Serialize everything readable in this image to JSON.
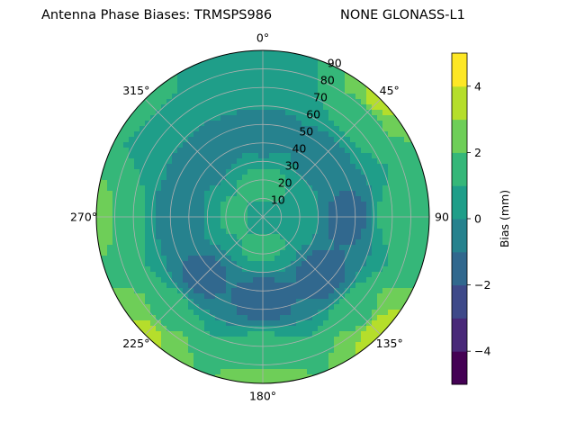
{
  "title": {
    "left": "Antenna Phase Biases: TRMSPS986",
    "right": "NONE GLONASS-L1"
  },
  "chart_data": {
    "type": "heatmap",
    "projection": "polar",
    "angular_axis": {
      "zero_location": "top",
      "direction": "clockwise",
      "ticks": [
        0,
        45,
        90,
        135,
        180,
        225,
        270,
        315
      ],
      "tick_labels": [
        "0°",
        "45°",
        "90",
        "135°",
        "180°",
        "225°",
        "270°",
        "315°"
      ]
    },
    "radial_axis": {
      "range": [
        0,
        90
      ],
      "ticks": [
        10,
        20,
        30,
        40,
        50,
        60,
        70,
        80,
        90
      ],
      "tick_labels": [
        "10",
        "20",
        "30",
        "40",
        "50",
        "60",
        "70",
        "80",
        "90"
      ]
    },
    "grid": true,
    "colorbar": {
      "label": "Bias (mm)",
      "colormap": "viridis",
      "range": [
        -5,
        5
      ],
      "levels": [
        -5,
        -4,
        -3,
        -2,
        -1,
        0,
        1,
        2,
        3,
        4,
        5
      ],
      "ticks": [
        -4,
        -2,
        0,
        2,
        4
      ],
      "tick_labels": [
        "−4",
        "−2",
        "0",
        "2",
        "4"
      ],
      "colors": [
        "#440154",
        "#482878",
        "#3e4989",
        "#31688e",
        "#26828e",
        "#1f9e89",
        "#35b779",
        "#6ece58",
        "#b5de2b",
        "#fde725"
      ]
    },
    "field": {
      "description_units": "bias in mm as a function of azimuth (deg) and zenith distance (deg)",
      "samples": [
        {
          "azimuth": 0,
          "zenith": 0,
          "bias": 0.6
        },
        {
          "azimuth": 0,
          "zenith": 15,
          "bias": 1.3
        },
        {
          "azimuth": 180,
          "zenith": 15,
          "bias": 1.2
        },
        {
          "azimuth": 90,
          "zenith": 15,
          "bias": 0.9
        },
        {
          "azimuth": 270,
          "zenith": 15,
          "bias": 1.1
        },
        {
          "azimuth": 90,
          "zenith": 45,
          "bias": -1.3
        },
        {
          "azimuth": 135,
          "zenith": 45,
          "bias": -1.4
        },
        {
          "azimuth": 180,
          "zenith": 45,
          "bias": -1.5
        },
        {
          "azimuth": 225,
          "zenith": 45,
          "bias": -1.2
        },
        {
          "azimuth": 270,
          "zenith": 45,
          "bias": -0.7
        },
        {
          "azimuth": 315,
          "zenith": 45,
          "bias": -0.6
        },
        {
          "azimuth": 0,
          "zenith": 45,
          "bias": -0.3
        },
        {
          "azimuth": 45,
          "zenith": 45,
          "bias": -0.4
        },
        {
          "azimuth": 0,
          "zenith": 75,
          "bias": 0.4
        },
        {
          "azimuth": 45,
          "zenith": 75,
          "bias": 1.3
        },
        {
          "azimuth": 90,
          "zenith": 75,
          "bias": 1.6
        },
        {
          "azimuth": 135,
          "zenith": 75,
          "bias": 1.8
        },
        {
          "azimuth": 180,
          "zenith": 75,
          "bias": 1.5
        },
        {
          "azimuth": 225,
          "zenith": 75,
          "bias": 1.8
        },
        {
          "azimuth": 270,
          "zenith": 75,
          "bias": 1.4
        },
        {
          "azimuth": 315,
          "zenith": 75,
          "bias": 0.9
        },
        {
          "azimuth": 45,
          "zenith": 89,
          "bias": 3.2
        },
        {
          "azimuth": 135,
          "zenith": 89,
          "bias": 3.6
        },
        {
          "azimuth": 180,
          "zenith": 89,
          "bias": 2.8
        },
        {
          "azimuth": 225,
          "zenith": 89,
          "bias": 3.2
        },
        {
          "azimuth": 270,
          "zenith": 89,
          "bias": 2.6
        },
        {
          "azimuth": 315,
          "zenith": 89,
          "bias": 1.2
        },
        {
          "azimuth": 0,
          "zenith": 89,
          "bias": 1.0
        }
      ]
    }
  }
}
